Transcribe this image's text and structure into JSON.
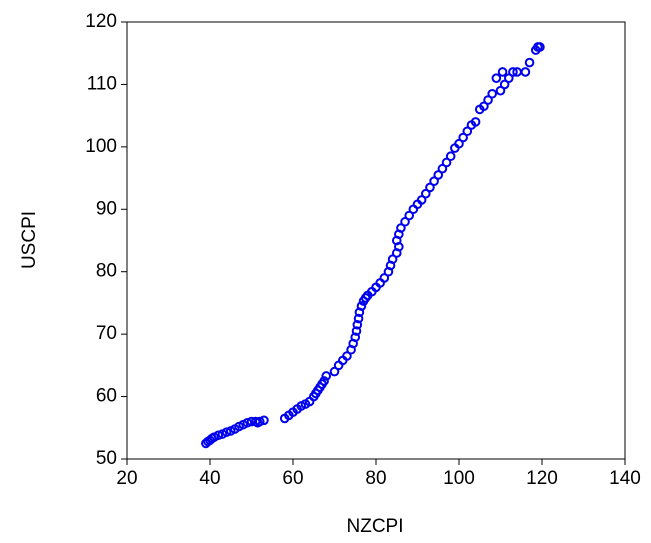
{
  "chart_data": {
    "type": "scatter",
    "xlabel": "NZCPI",
    "ylabel": "USCPI",
    "color": "#0000ee",
    "xlim": [
      20,
      140
    ],
    "xticks": [
      20,
      40,
      60,
      80,
      100,
      120,
      140
    ],
    "ylim": [
      50,
      120
    ],
    "yticks": [
      50,
      60,
      70,
      80,
      90,
      100,
      110,
      120
    ],
    "x": [
      39,
      39.5,
      40,
      40.5,
      41,
      42,
      43,
      44,
      45,
      46,
      47,
      48,
      49,
      50,
      51,
      51.5,
      52,
      53,
      58,
      59,
      60,
      61,
      62,
      63,
      64,
      65,
      65.5,
      66,
      66.5,
      67,
      67.5,
      68,
      70,
      71,
      72,
      73,
      74,
      74.5,
      75,
      75.3,
      75.5,
      75.8,
      76,
      76.5,
      77,
      77.5,
      78,
      79,
      80,
      81,
      82,
      83,
      83.5,
      84,
      85,
      85.5,
      85,
      85.5,
      86,
      87,
      88,
      89,
      90,
      91,
      92,
      93,
      94,
      95,
      96,
      97,
      98,
      99,
      100,
      101,
      102,
      103,
      104,
      105,
      106,
      107,
      108,
      109,
      110,
      110.5,
      111,
      112,
      113,
      114,
      116,
      117,
      118.5,
      119,
      119.5
    ],
    "values": [
      52.5,
      52.8,
      53,
      53.3,
      53.5,
      53.8,
      54,
      54.3,
      54.5,
      54.8,
      55.2,
      55.5,
      55.8,
      56,
      56,
      55.8,
      56,
      56.2,
      56.5,
      57,
      57.5,
      58,
      58.5,
      58.8,
      59.2,
      60,
      60.5,
      61,
      61.5,
      62,
      62.5,
      63.3,
      64,
      65,
      65.8,
      66.5,
      67.5,
      68.5,
      69.5,
      70.5,
      71.5,
      72.5,
      73.5,
      74.5,
      75.3,
      75.8,
      76.2,
      76.8,
      77.5,
      78.2,
      79,
      80,
      81,
      82,
      83,
      84,
      85,
      86,
      87,
      88,
      89,
      90,
      90.8,
      91.5,
      92.5,
      93.5,
      94.5,
      95.5,
      96.5,
      97.5,
      98.5,
      99.8,
      100.5,
      101.5,
      102.5,
      103.5,
      104,
      106,
      106.5,
      107.5,
      108.5,
      111,
      109,
      112,
      110,
      111,
      112,
      112,
      112,
      113.5,
      115.5,
      116,
      116
    ]
  }
}
